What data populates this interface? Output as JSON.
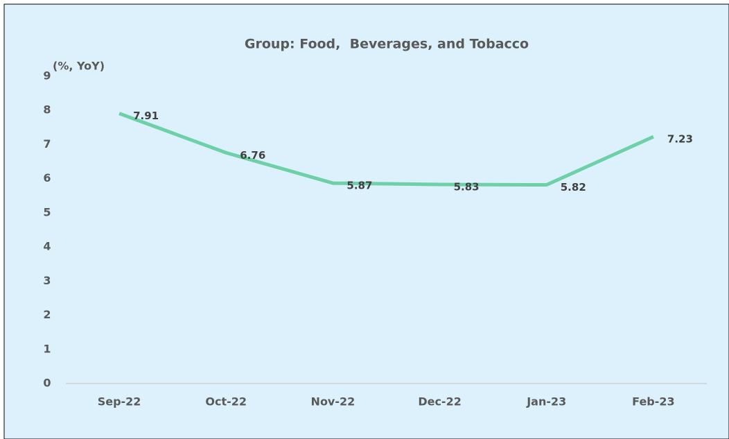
{
  "chart_data": {
    "type": "line",
    "title": "Group: Food,  Beverages, and Tobacco",
    "y_label": "(%, YoY)",
    "categories": [
      "Sep-22",
      "Oct-22",
      "Nov-22",
      "Dec-22",
      "Jan-23",
      "Feb-23"
    ],
    "series": [
      {
        "name": "Food, Beverages, and Tobacco",
        "color": "#6dd0a6",
        "values": [
          7.91,
          6.76,
          5.87,
          5.83,
          5.82,
          7.23
        ]
      }
    ],
    "ylim": [
      0,
      9
    ],
    "yticks": [
      0,
      1,
      2,
      3,
      4,
      5,
      6,
      7,
      8,
      9
    ],
    "grid": false,
    "legend": false
  }
}
